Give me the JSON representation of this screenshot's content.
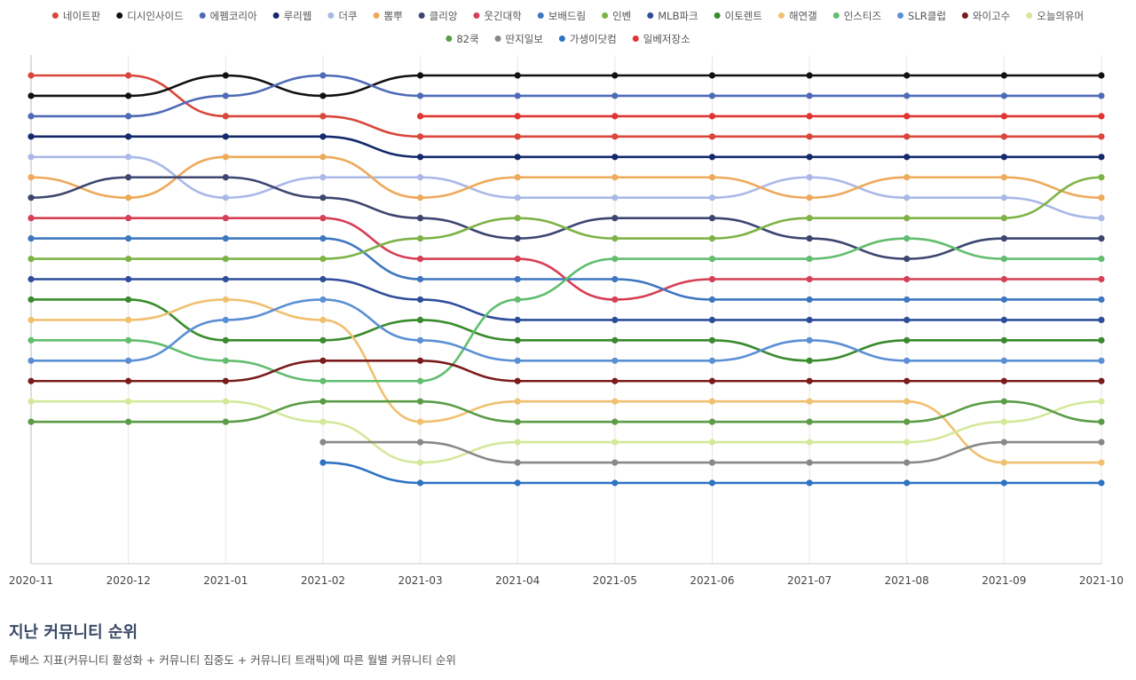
{
  "chart_data": {
    "type": "line",
    "x": [
      "2020-11",
      "2020-12",
      "2021-01",
      "2021-02",
      "2021-03",
      "2021-04",
      "2021-05",
      "2021-06",
      "2021-07",
      "2021-08",
      "2021-09",
      "2021-10"
    ],
    "ylim": [
      1,
      25
    ],
    "y_reversed": true,
    "grid": true,
    "legend_position": "top",
    "series": [
      {
        "name": "네이트판",
        "color": "#d9463a",
        "values": [
          1,
          1,
          3,
          3,
          4,
          4,
          4,
          4,
          4,
          4,
          4,
          4
        ]
      },
      {
        "name": "디시인사이드",
        "color": "#111111",
        "values": [
          2,
          2,
          1,
          2,
          1,
          1,
          1,
          1,
          1,
          1,
          1,
          1
        ]
      },
      {
        "name": "에펨코리아",
        "color": "#4f6bb8",
        "values": [
          3,
          3,
          2,
          1,
          2,
          2,
          2,
          2,
          2,
          2,
          2,
          2
        ]
      },
      {
        "name": "루리웹",
        "color": "#13296b",
        "values": [
          4,
          4,
          4,
          4,
          5,
          5,
          5,
          5,
          5,
          5,
          5,
          5
        ]
      },
      {
        "name": "더쿠",
        "color": "#aab8e8",
        "values": [
          5,
          5,
          7,
          6,
          6,
          7,
          7,
          7,
          6,
          7,
          7,
          8
        ]
      },
      {
        "name": "뽐뿌",
        "color": "#eea95a",
        "values": [
          6,
          7,
          5,
          5,
          7,
          6,
          6,
          6,
          7,
          6,
          6,
          7
        ]
      },
      {
        "name": "클리앙",
        "color": "#3d4670",
        "values": [
          7,
          6,
          6,
          7,
          8,
          9,
          8,
          8,
          9,
          10,
          9,
          9
        ]
      },
      {
        "name": "웃긴대학",
        "color": "#d63f55",
        "values": [
          8,
          8,
          8,
          8,
          10,
          10,
          12,
          11,
          11,
          11,
          11,
          11
        ]
      },
      {
        "name": "보배드림",
        "color": "#3d77c0",
        "values": [
          9,
          9,
          9,
          9,
          11,
          11,
          11,
          12,
          12,
          12,
          12,
          12
        ]
      },
      {
        "name": "인벤",
        "color": "#7db346",
        "values": [
          10,
          10,
          10,
          10,
          9,
          8,
          9,
          9,
          8,
          8,
          8,
          6
        ]
      },
      {
        "name": "MLB파크",
        "color": "#2f4e9a",
        "values": [
          11,
          11,
          11,
          11,
          12,
          13,
          13,
          13,
          13,
          13,
          13,
          13
        ]
      },
      {
        "name": "이토렌트",
        "color": "#3a8a2e",
        "values": [
          12,
          12,
          14,
          14,
          13,
          14,
          14,
          14,
          15,
          14,
          14,
          14
        ]
      },
      {
        "name": "해연갤",
        "color": "#f0c070",
        "values": [
          13,
          13,
          12,
          13,
          18,
          17,
          17,
          17,
          17,
          17,
          20,
          20
        ]
      },
      {
        "name": "인스티즈",
        "color": "#62bd6e",
        "values": [
          14,
          14,
          15,
          16,
          16,
          12,
          10,
          10,
          10,
          9,
          10,
          10
        ]
      },
      {
        "name": "SLR클럽",
        "color": "#5b8fd4",
        "values": [
          15,
          15,
          13,
          12,
          14,
          15,
          15,
          15,
          14,
          15,
          15,
          15
        ]
      },
      {
        "name": "와이고수",
        "color": "#7a1c1c",
        "values": [
          16,
          16,
          16,
          15,
          15,
          16,
          16,
          16,
          16,
          16,
          16,
          16
        ]
      },
      {
        "name": "오늘의유머",
        "color": "#d5e89a",
        "values": [
          17,
          17,
          17,
          18,
          20,
          19,
          19,
          19,
          19,
          19,
          18,
          17
        ]
      },
      {
        "name": "82쿡",
        "color": "#5b9c47",
        "values": [
          18,
          18,
          18,
          17,
          17,
          18,
          18,
          18,
          18,
          18,
          17,
          18
        ]
      },
      {
        "name": "딴지일보",
        "color": "#888888",
        "values": [
          null,
          null,
          null,
          19,
          19,
          20,
          20,
          20,
          20,
          20,
          19,
          19
        ]
      },
      {
        "name": "가생이닷컴",
        "color": "#2e73c4",
        "values": [
          null,
          null,
          null,
          20,
          21,
          21,
          21,
          21,
          21,
          21,
          21,
          21
        ]
      },
      {
        "name": "일베저장소",
        "color": "#e03530",
        "values": [
          null,
          null,
          null,
          null,
          3,
          3,
          3,
          3,
          3,
          3,
          3,
          3
        ]
      }
    ]
  },
  "caption": {
    "title": "지난 커뮤니티 순위",
    "subtitle": "투베스 지표(커뮤니티 활성화 + 커뮤니티 집중도 + 커뮤니티 트래픽)에 따른 월별 커뮤니티 순위"
  }
}
